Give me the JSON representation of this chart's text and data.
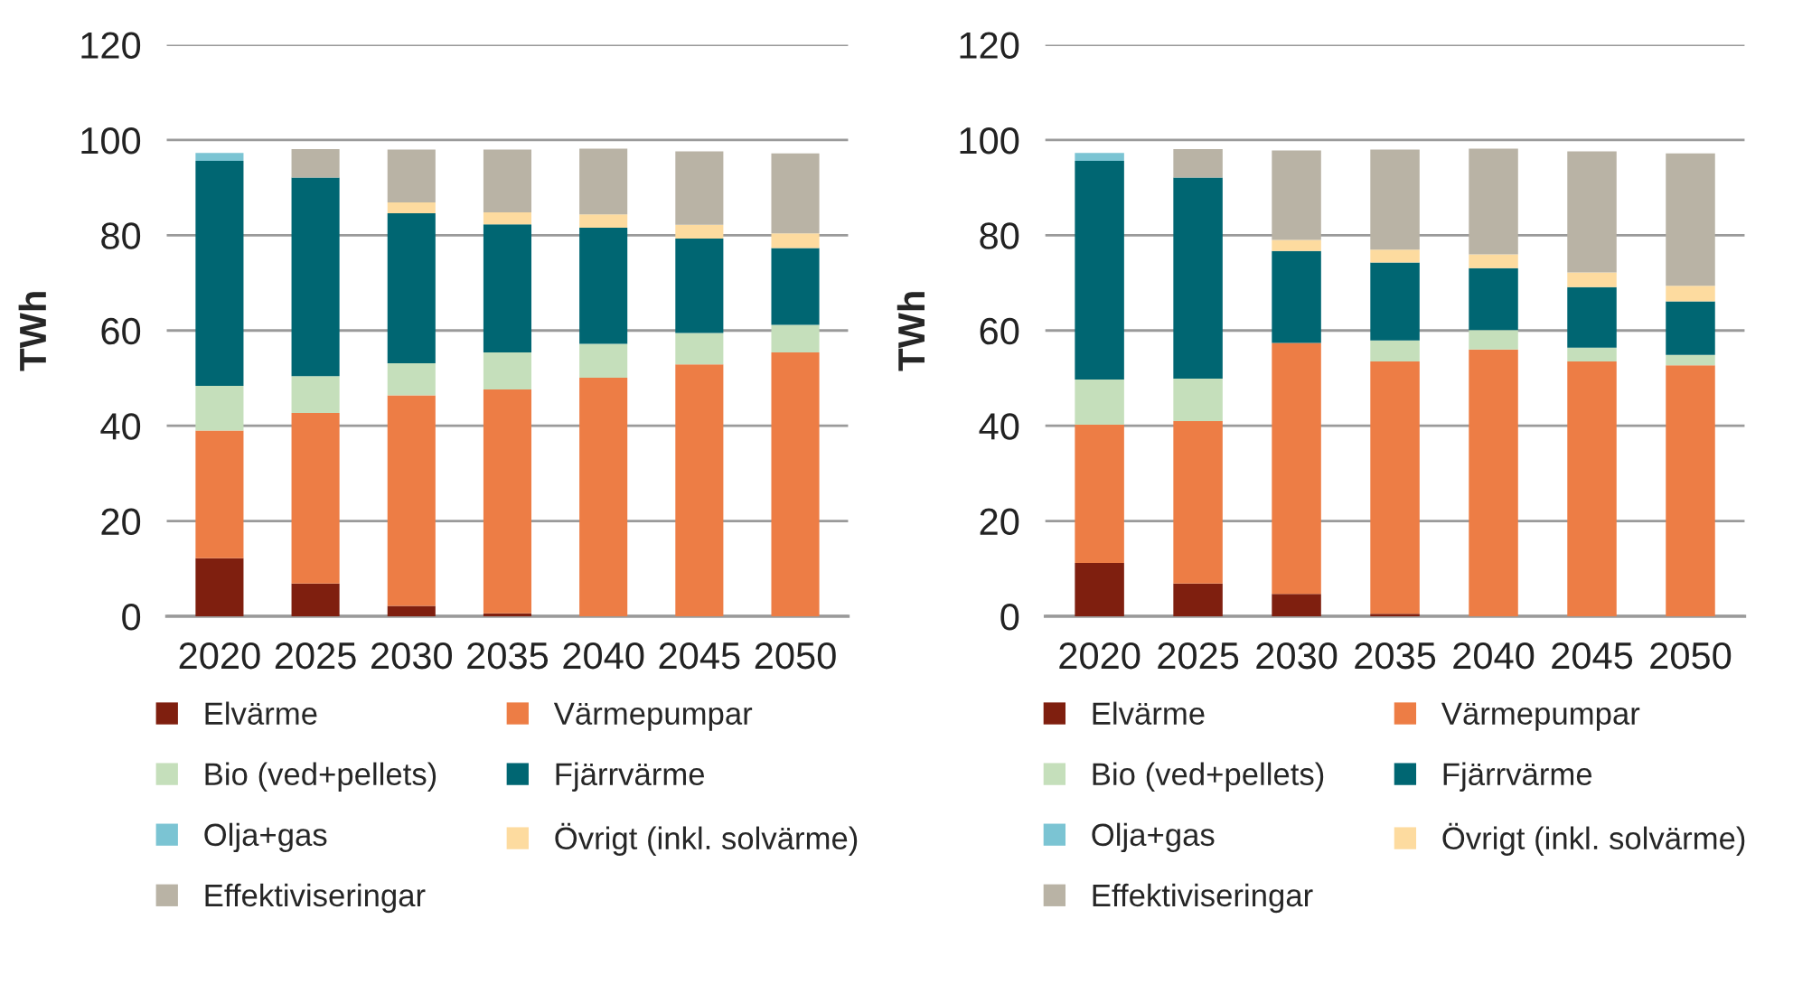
{
  "chart_data": [
    {
      "type": "bar",
      "stacked": true,
      "ylabel": "TWh",
      "categories": [
        "2020",
        "2025",
        "2030",
        "2035",
        "2040",
        "2045",
        "2050"
      ],
      "ylim": [
        0,
        120
      ],
      "yticks": [
        0,
        20,
        40,
        60,
        80,
        100,
        120
      ],
      "grid": "y",
      "legend": "bottom",
      "series": [
        {
          "name": "Elvärme",
          "color": "#7f1f0f",
          "values": [
            12.2,
            6.9,
            2.2,
            0.6,
            0,
            0,
            0
          ]
        },
        {
          "name": "Värmepumpar",
          "color": "#ed7d45",
          "values": [
            26.8,
            35.8,
            44.2,
            47.0,
            50.1,
            52.9,
            55.4
          ]
        },
        {
          "name": "Bio (ved+pellets)",
          "color": "#c5dfbb",
          "values": [
            9.4,
            7.7,
            6.7,
            7.8,
            7.1,
            6.6,
            5.8
          ]
        },
        {
          "name": "Fjärrvärme",
          "color": "#006672",
          "values": [
            47.2,
            41.7,
            31.5,
            26.9,
            24.4,
            19.8,
            16.1
          ]
        },
        {
          "name": "Olja+gas",
          "color": "#7bc4d3",
          "values": [
            1.7,
            0,
            0,
            0,
            0,
            0,
            0
          ]
        },
        {
          "name": "Övrigt (inkl. solvärme)",
          "color": "#fddb9f",
          "values": [
            0,
            0,
            2.3,
            2.5,
            2.8,
            2.9,
            3.1
          ]
        },
        {
          "name": "Effektiviseringar",
          "color": "#b9b3a5",
          "values": [
            0,
            6.0,
            11.1,
            13.2,
            13.8,
            15.4,
            16.8
          ]
        }
      ]
    },
    {
      "type": "bar",
      "stacked": true,
      "ylabel": "TWh",
      "categories": [
        "2020",
        "2025",
        "2030",
        "2035",
        "2040",
        "2045",
        "2050"
      ],
      "ylim": [
        0,
        120
      ],
      "yticks": [
        0,
        20,
        40,
        60,
        80,
        100,
        120
      ],
      "grid": "y",
      "legend": "bottom",
      "series": [
        {
          "name": "Elvärme",
          "color": "#7f1f0f",
          "values": [
            11.2,
            6.9,
            4.7,
            0.5,
            0,
            0,
            0
          ]
        },
        {
          "name": "Värmepumpar",
          "color": "#ed7d45",
          "values": [
            29.0,
            34.1,
            52.7,
            53.0,
            56.0,
            53.5,
            52.7
          ]
        },
        {
          "name": "Bio (ved+pellets)",
          "color": "#c5dfbb",
          "values": [
            9.5,
            8.9,
            0,
            4.4,
            4.1,
            2.9,
            2.2
          ]
        },
        {
          "name": "Fjärrvärme",
          "color": "#006672",
          "values": [
            45.9,
            42.2,
            19.3,
            16.4,
            13.0,
            12.7,
            11.2
          ]
        },
        {
          "name": "Olja+gas",
          "color": "#7bc4d3",
          "values": [
            1.7,
            0,
            0,
            0,
            0,
            0,
            0
          ]
        },
        {
          "name": "Övrigt (inkl. solvärme)",
          "color": "#fddb9f",
          "values": [
            0,
            0,
            2.3,
            2.7,
            2.9,
            3.1,
            3.3
          ]
        },
        {
          "name": "Effektiviseringar",
          "color": "#b9b3a5",
          "values": [
            0,
            6.0,
            18.8,
            21.0,
            22.2,
            25.4,
            27.8
          ]
        }
      ]
    }
  ]
}
